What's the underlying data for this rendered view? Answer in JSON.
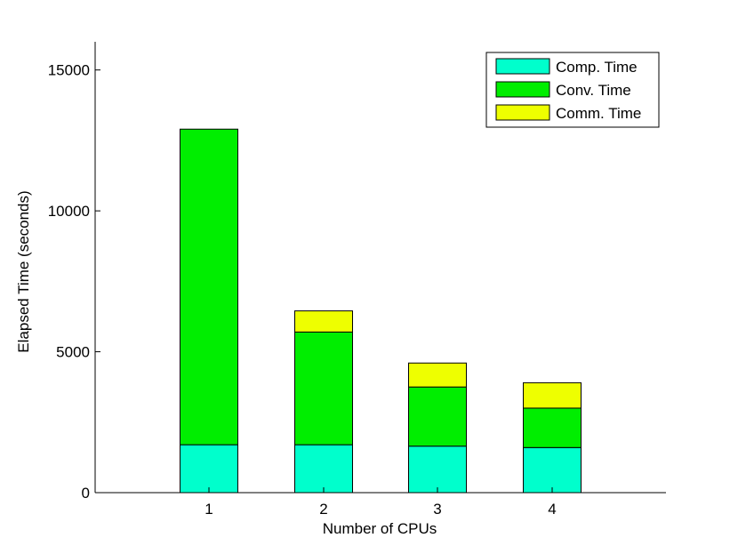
{
  "chart_data": {
    "type": "bar",
    "stacked": true,
    "categories": [
      "1",
      "2",
      "3",
      "4"
    ],
    "series": [
      {
        "name": "Comp. Time",
        "color": "#00ffcc",
        "values": [
          1700,
          1700,
          1650,
          1600
        ]
      },
      {
        "name": "Conv. Time",
        "color": "#00ee00",
        "values": [
          11200,
          4000,
          2100,
          1400
        ]
      },
      {
        "name": "Comm. Time",
        "color": "#eeff00",
        "values": [
          0,
          750,
          850,
          900
        ]
      }
    ],
    "xlabel": "Number of CPUs",
    "ylabel": "Elapsed Time (seconds)",
    "ylim": [
      0,
      16000
    ],
    "yticks": [
      0,
      5000,
      10000,
      15000
    ],
    "ytick_labels": [
      "0",
      "5000",
      "10000",
      "15000"
    ],
    "grid": false,
    "legend_position": "top-right"
  }
}
